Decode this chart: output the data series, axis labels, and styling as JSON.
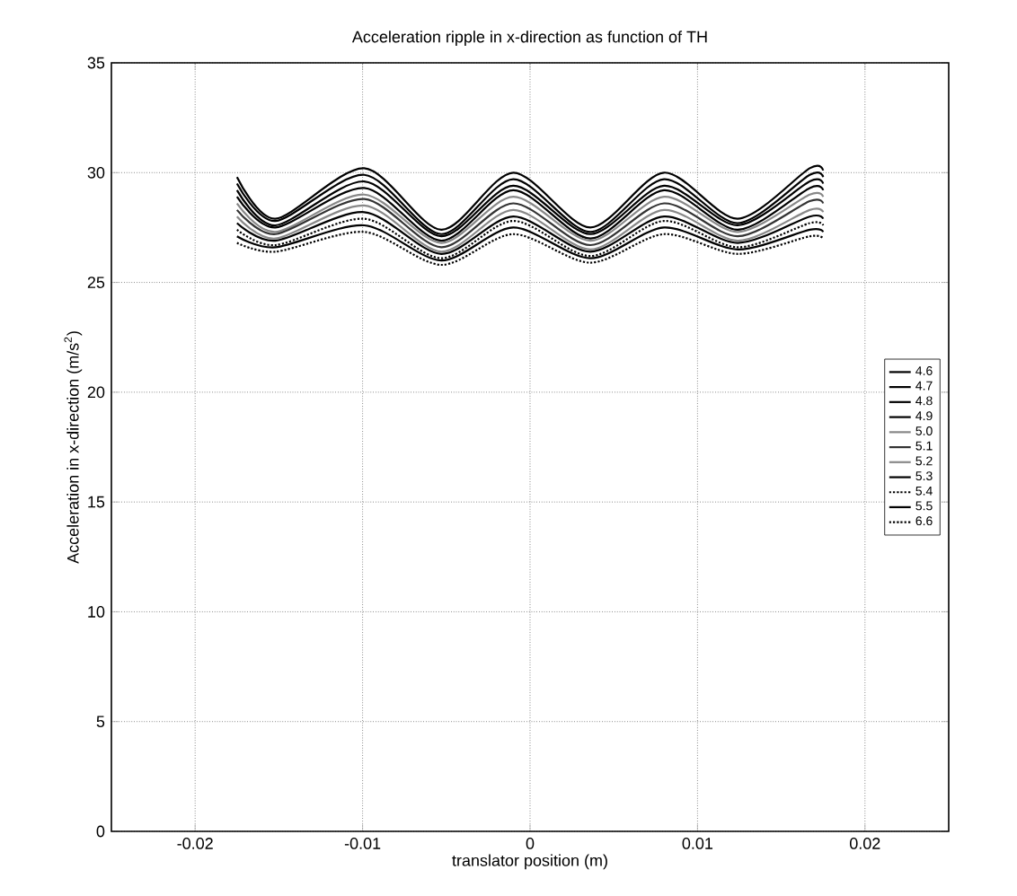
{
  "chart_data": {
    "type": "line",
    "title": "Acceleration ripple in x-direction as function of TH",
    "xlabel": "translator position (m)",
    "ylabel": "Acceleration in x-direction (m/s$^{2}$)",
    "x": [
      -0.0175,
      -0.0152,
      -0.0099,
      -0.0053,
      -0.001,
      0.0036,
      0.008,
      0.0124,
      0.0167,
      0.0175
    ],
    "series": [
      {
        "name": "4.6",
        "color": "#000000",
        "line_style": "solid",
        "values": [
          29.8,
          27.9,
          30.2,
          27.4,
          30.0,
          27.5,
          30.0,
          27.9,
          30.2,
          30.1
        ]
      },
      {
        "name": "4.7",
        "color": "#000000",
        "line_style": "solid",
        "values": [
          29.5,
          27.8,
          29.9,
          27.2,
          29.7,
          27.3,
          29.7,
          27.7,
          29.9,
          29.8
        ]
      },
      {
        "name": "4.8",
        "color": "#000000",
        "line_style": "solid",
        "values": [
          29.2,
          27.6,
          29.6,
          27.1,
          29.4,
          27.2,
          29.4,
          27.6,
          29.6,
          29.5
        ]
      },
      {
        "name": "4.9",
        "color": "#000000",
        "line_style": "solid",
        "values": [
          28.9,
          27.5,
          29.3,
          26.9,
          29.2,
          27.0,
          29.2,
          27.4,
          29.3,
          29.2
        ]
      },
      {
        "name": "5.0",
        "color": "#888888",
        "line_style": "solid",
        "values": [
          28.6,
          27.3,
          29.0,
          26.8,
          28.9,
          26.9,
          28.9,
          27.3,
          29.0,
          28.9
        ]
      },
      {
        "name": "5.1",
        "color": "#333333",
        "line_style": "solid",
        "values": [
          28.3,
          27.2,
          28.8,
          26.6,
          28.6,
          26.7,
          28.6,
          27.1,
          28.7,
          28.6
        ]
      },
      {
        "name": "5.2",
        "color": "#888888",
        "line_style": "solid",
        "values": [
          28.0,
          27.0,
          28.5,
          26.4,
          28.3,
          26.5,
          28.3,
          26.9,
          28.3,
          28.2
        ]
      },
      {
        "name": "5.3",
        "color": "#000000",
        "line_style": "solid",
        "values": [
          27.7,
          26.9,
          28.2,
          26.3,
          28.0,
          26.4,
          28.0,
          26.8,
          28.0,
          27.9
        ]
      },
      {
        "name": "5.4",
        "color": "#000000",
        "line_style": "dotted",
        "values": [
          27.4,
          26.7,
          27.9,
          26.1,
          27.8,
          26.2,
          27.8,
          26.6,
          27.7,
          27.6
        ]
      },
      {
        "name": "5.5",
        "color": "#000000",
        "line_style": "solid",
        "values": [
          27.1,
          26.6,
          27.6,
          26.0,
          27.5,
          26.1,
          27.5,
          26.5,
          27.4,
          27.3
        ]
      },
      {
        "name": "6.6",
        "color": "#000000",
        "line_style": "dotted",
        "values": [
          26.8,
          26.4,
          27.3,
          25.8,
          27.2,
          25.9,
          27.2,
          26.3,
          27.1,
          27.0
        ]
      }
    ],
    "xlim": [
      -0.025,
      0.025
    ],
    "ylim": [
      0,
      35
    ],
    "xticks": [
      -0.02,
      -0.01,
      0,
      0.01,
      0.02
    ],
    "yticks": [
      0,
      5,
      10,
      15,
      20,
      25,
      30,
      35
    ],
    "grid": true,
    "legend": "right"
  }
}
